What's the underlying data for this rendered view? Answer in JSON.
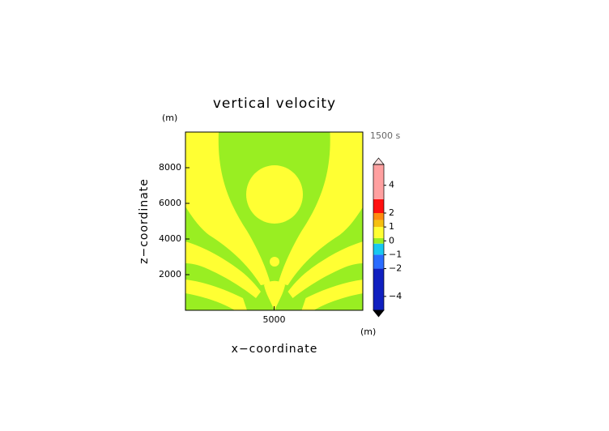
{
  "chart_data": {
    "type": "contour",
    "title": "vertical velocity",
    "time_label": "1500 s",
    "x_label": "x−coordinate",
    "y_label": "z−coordinate",
    "x_unit": "(m)",
    "y_unit": "(m)",
    "xlim": [
      0,
      10000
    ],
    "ylim": [
      0,
      10000
    ],
    "xticks": [
      5000
    ],
    "yticks": [
      2000,
      4000,
      6000,
      8000
    ],
    "levels": [
      -5,
      -2,
      -1,
      -0.2,
      0.2,
      1,
      1.5,
      2,
      3,
      5.5
    ],
    "colors": [
      "#1020c0",
      "#2a6cff",
      "#18c8f0",
      "#99ee22",
      "#ffff33",
      "#f5c010",
      "#ff8c10",
      "#ff1010",
      "#ffa0a0"
    ],
    "cticks": [
      {
        "value": 4,
        "label": "4"
      },
      {
        "value": 2,
        "label": "2"
      },
      {
        "value": 1,
        "label": "1"
      },
      {
        "value": 0,
        "label": "0"
      },
      {
        "value": -1,
        "label": "−1"
      },
      {
        "value": -2,
        "label": "−2"
      },
      {
        "value": -4,
        "label": "−4"
      }
    ]
  }
}
